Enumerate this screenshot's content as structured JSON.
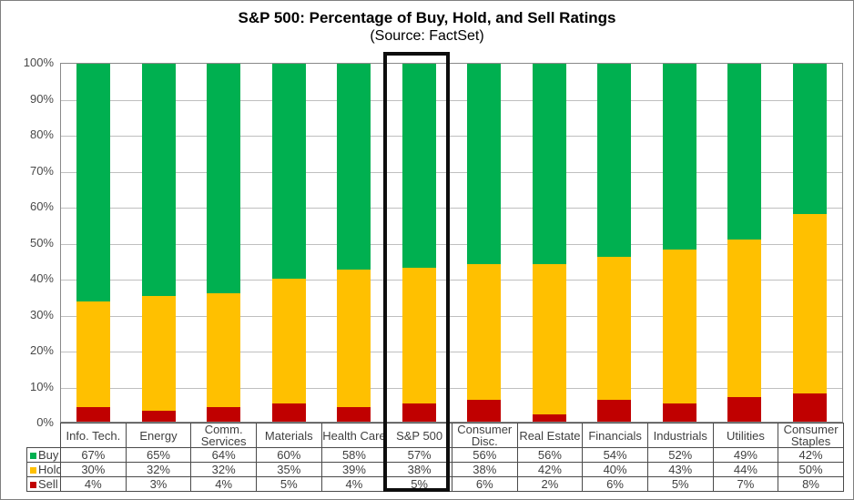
{
  "title": "S&P 500: Percentage of Buy, Hold, and Sell Ratings",
  "subtitle": "(Source: FactSet)",
  "colors": {
    "buy": "#00B050",
    "hold": "#FFC000",
    "sell": "#C00000",
    "gridline": "#BFBFBF",
    "highlight_box": "#0D0D0D"
  },
  "chart_data": {
    "type": "bar",
    "stacked": true,
    "percent_stacked": true,
    "title": "S&P 500: Percentage of Buy, Hold, and Sell Ratings",
    "subtitle": "(Source: FactSet)",
    "categories": [
      "Info. Tech.",
      "Energy",
      "Comm. Services",
      "Materials",
      "Health Care",
      "S&P 500",
      "Consumer Disc.",
      "Real Estate",
      "Financials",
      "Industrials",
      "Utilities",
      "Consumer Staples"
    ],
    "series": [
      {
        "name": "Buy",
        "color": "#00B050",
        "values": [
          67,
          65,
          64,
          60,
          58,
          57,
          56,
          56,
          54,
          52,
          49,
          42
        ]
      },
      {
        "name": "Hold",
        "color": "#FFC000",
        "values": [
          30,
          32,
          32,
          35,
          39,
          38,
          38,
          42,
          40,
          43,
          44,
          50
        ]
      },
      {
        "name": "Sell",
        "color": "#C00000",
        "values": [
          4,
          3,
          4,
          5,
          4,
          5,
          6,
          2,
          6,
          5,
          7,
          8
        ]
      }
    ],
    "xlabel": "",
    "ylabel": "",
    "ylim": [
      0,
      100
    ],
    "yticks": [
      "0%",
      "10%",
      "20%",
      "30%",
      "40%",
      "50%",
      "60%",
      "70%",
      "80%",
      "90%",
      "100%"
    ],
    "grid": true,
    "legend_position": "table-row-headers",
    "highlighted_category": "S&P 500",
    "value_suffix": "%"
  }
}
